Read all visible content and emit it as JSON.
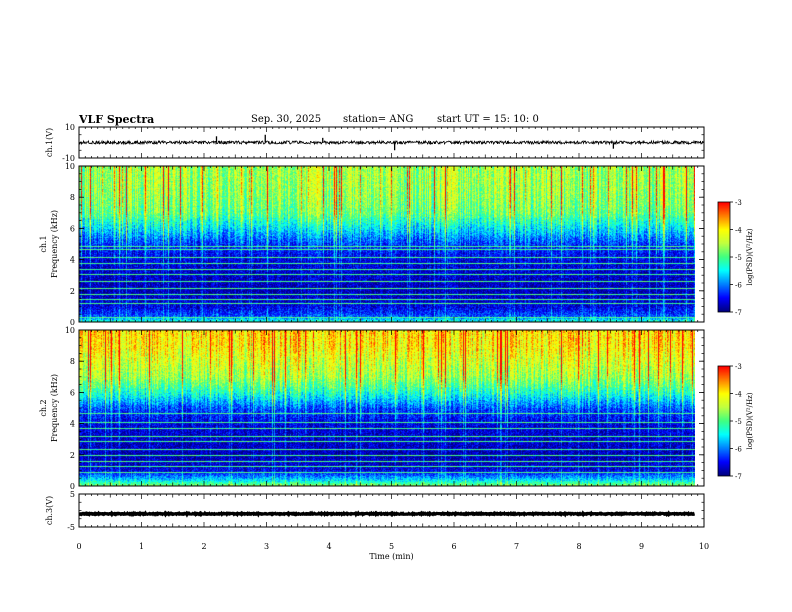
{
  "header": {
    "title": "VLF Spectra",
    "date": "Sep. 30, 2025",
    "station": "station= ANG",
    "start": "start  UT =   15: 10: 0"
  },
  "colors": {
    "cmap": [
      "#00007f",
      "#0000ff",
      "#0080ff",
      "#00ffff",
      "#40ff80",
      "#c0ff40",
      "#ffff00",
      "#ff8000",
      "#ff0000"
    ],
    "trace": "#000000",
    "frame": "#000000"
  },
  "chart_data": [
    {
      "type": "line",
      "id": "ch1-waveform",
      "ylabel": "ch.1(V)",
      "ylim": [
        -10,
        10
      ],
      "y_ticks": [
        "10",
        "-10"
      ],
      "x_range": [
        0,
        10
      ],
      "baseline": 0,
      "noise_amplitude": 1.0,
      "spikes": [
        {
          "t": 2.2,
          "v": 4
        },
        {
          "t": 2.98,
          "v": 5
        },
        {
          "t": 3.9,
          "v": 3
        },
        {
          "t": 5.05,
          "v": -5
        },
        {
          "t": 8.55,
          "v": -4
        }
      ]
    },
    {
      "type": "heatmap",
      "id": "ch1-spectrogram",
      "ylabel": "ch.1",
      "ylabel2": "Frequency (kHz)",
      "ylim": [
        0,
        10
      ],
      "x_range": [
        0,
        9.85
      ],
      "y_ticks": [
        "0",
        "2",
        "4",
        "6",
        "8",
        "10"
      ],
      "colorbar": {
        "label": "log(PSD)(V²/Hz)",
        "range": [
          -7,
          -3
        ],
        "ticks": [
          "-3",
          "-4",
          "-5",
          "-6",
          "-7"
        ]
      },
      "profile": [
        {
          "f": 0.0,
          "level": -5.2
        },
        {
          "f": 0.4,
          "level": -6.2
        },
        {
          "f": 1.0,
          "level": -6.6
        },
        {
          "f": 2.0,
          "level": -6.8
        },
        {
          "f": 3.0,
          "level": -6.7
        },
        {
          "f": 4.0,
          "level": -6.6
        },
        {
          "f": 5.0,
          "level": -6.3
        },
        {
          "f": 6.0,
          "level": -5.6
        },
        {
          "f": 7.0,
          "level": -4.9
        },
        {
          "f": 8.0,
          "level": -4.7
        },
        {
          "f": 9.0,
          "level": -4.6
        },
        {
          "f": 10.0,
          "level": -4.6
        }
      ],
      "lines_khz": [
        0.3,
        1.2,
        1.5,
        1.8,
        2.2,
        2.6,
        3.1,
        3.4,
        3.8,
        4.15,
        4.65,
        4.85
      ]
    },
    {
      "type": "heatmap",
      "id": "ch2-spectrogram",
      "ylabel": "ch.2",
      "ylabel2": "Frequency (kHz)",
      "ylim": [
        0,
        10
      ],
      "x_range": [
        0,
        9.85
      ],
      "y_ticks": [
        "0",
        "2",
        "4",
        "6",
        "8",
        "10"
      ],
      "colorbar": {
        "label": "log(PSD)(V²/Hz)",
        "range": [
          -7,
          -3
        ],
        "ticks": [
          "-3",
          "-4",
          "-5",
          "-6",
          "-7"
        ]
      },
      "profile": [
        {
          "f": 0.0,
          "level": -4.6
        },
        {
          "f": 0.4,
          "level": -5.6
        },
        {
          "f": 1.0,
          "level": -6.6
        },
        {
          "f": 2.0,
          "level": -6.8
        },
        {
          "f": 3.0,
          "level": -6.7
        },
        {
          "f": 4.0,
          "level": -6.6
        },
        {
          "f": 5.0,
          "level": -6.2
        },
        {
          "f": 6.0,
          "level": -5.3
        },
        {
          "f": 7.0,
          "level": -4.6
        },
        {
          "f": 8.0,
          "level": -4.3
        },
        {
          "f": 9.0,
          "level": -4.0
        },
        {
          "f": 10.0,
          "level": -3.9
        }
      ],
      "lines_khz": [
        0.9,
        1.3,
        1.6,
        2.0,
        2.4,
        2.9,
        3.2,
        3.7,
        4.1,
        4.7
      ]
    },
    {
      "type": "line",
      "id": "ch3-waveform",
      "ylabel": "ch.3(V)",
      "ylim": [
        -5,
        5
      ],
      "y_ticks": [
        "5",
        "-5"
      ],
      "x_range": [
        0,
        9.85
      ],
      "baseline": -1.0,
      "noise_amplitude": 0.15
    },
    {
      "id": "time-axis",
      "xlabel": "Time (min)",
      "xlim": [
        0,
        10
      ],
      "x_ticks": [
        "0",
        "1",
        "2",
        "3",
        "4",
        "5",
        "6",
        "7",
        "8",
        "9",
        "10"
      ]
    }
  ]
}
